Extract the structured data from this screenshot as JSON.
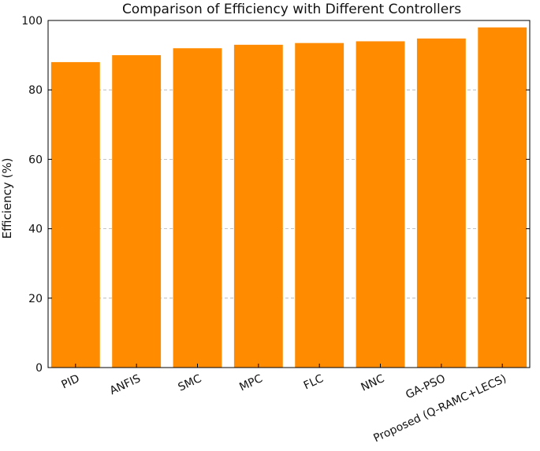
{
  "chart_data": {
    "type": "bar",
    "title": "Comparison of Efficiency with Different Controllers",
    "xlabel": "",
    "ylabel": "Efficiency (%)",
    "categories": [
      "PID",
      "ANFIS",
      "SMC",
      "MPC",
      "FLC",
      "NNC",
      "GA-PSO",
      "Proposed (Q-RAMC+LECS)"
    ],
    "values": [
      88,
      90,
      92,
      93,
      93.5,
      94,
      94.8,
      98
    ],
    "ylim": [
      0,
      100
    ],
    "yticks": [
      0,
      20,
      40,
      60,
      80,
      100
    ],
    "grid": true,
    "bar_color": "#ff8c00",
    "grid_color": "#b0b0b0"
  }
}
